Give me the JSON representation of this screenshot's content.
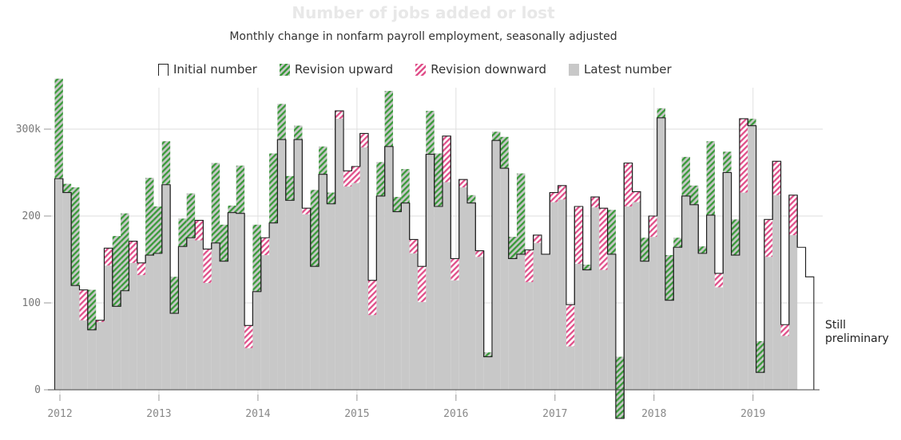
{
  "header": {
    "title": "Number of jobs added or lost",
    "subtitle": "Monthly change in nonfarm payroll employment, seasonally adjusted"
  },
  "legend": {
    "initial": "Initial number",
    "up": "Revision upward",
    "down": "Revision downward",
    "latest": "Latest number"
  },
  "annotation": {
    "line1": "Still",
    "line2": "preliminary"
  },
  "colors": {
    "upward": "#3a9a3a",
    "downward": "#e0508a",
    "latest": "#c8c8c8",
    "initial_line": "#222222"
  },
  "chart_data": {
    "type": "bar",
    "title": "Number of jobs added or lost",
    "subtitle": "Monthly change in nonfarm payroll employment, seasonally adjusted",
    "xlabel": "",
    "ylabel": "",
    "ylim": [
      -35,
      360
    ],
    "yticks": [
      0,
      100,
      200,
      300
    ],
    "ytick_labels": [
      "0",
      "100",
      "200",
      "300k"
    ],
    "xticks": [
      "2012",
      "2013",
      "2014",
      "2015",
      "2016",
      "2017",
      "2018",
      "2019"
    ],
    "start": "2012-01",
    "series": [
      {
        "name": "Initial number",
        "values": [
          243,
          227,
          120,
          115,
          69,
          80,
          163,
          96,
          114,
          171,
          146,
          155,
          157,
          236,
          88,
          165,
          175,
          195,
          162,
          169,
          148,
          204,
          203,
          74,
          113,
          175,
          192,
          288,
          218,
          288,
          209,
          142,
          248,
          214,
          321,
          252,
          257,
          295,
          126,
          223,
          280,
          205,
          215,
          173,
          142,
          271,
          211,
          292,
          151,
          242,
          215,
          160,
          38,
          287,
          255,
          151,
          156,
          161,
          178,
          156,
          227,
          235,
          98,
          211,
          138,
          222,
          209,
          156,
          -33,
          261,
          228,
          148,
          200,
          313,
          103,
          164,
          223,
          213,
          157,
          201,
          134,
          250,
          155,
          312,
          304,
          20,
          196,
          263,
          75,
          224,
          164,
          130
        ]
      },
      {
        "name": "Latest number",
        "values": [
          358,
          237,
          233,
          80,
          115,
          78,
          143,
          177,
          203,
          146,
          132,
          244,
          211,
          286,
          130,
          197,
          226,
          172,
          123,
          261,
          190,
          212,
          258,
          48,
          190,
          155,
          272,
          329,
          246,
          304,
          202,
          230,
          280,
          227,
          312,
          234,
          238,
          279,
          86,
          262,
          344,
          222,
          254,
          157,
          101,
          321,
          272,
          239,
          126,
          233,
          224,
          153,
          43,
          297,
          291,
          176,
          249,
          124,
          169,
          156,
          216,
          219,
          50,
          145,
          144,
          210,
          138,
          207,
          38,
          211,
          216,
          175,
          176,
          324,
          155,
          175,
          268,
          235,
          165,
          286,
          118,
          274,
          196,
          227,
          312,
          56,
          153,
          224,
          62,
          178
        ]
      }
    ]
  }
}
